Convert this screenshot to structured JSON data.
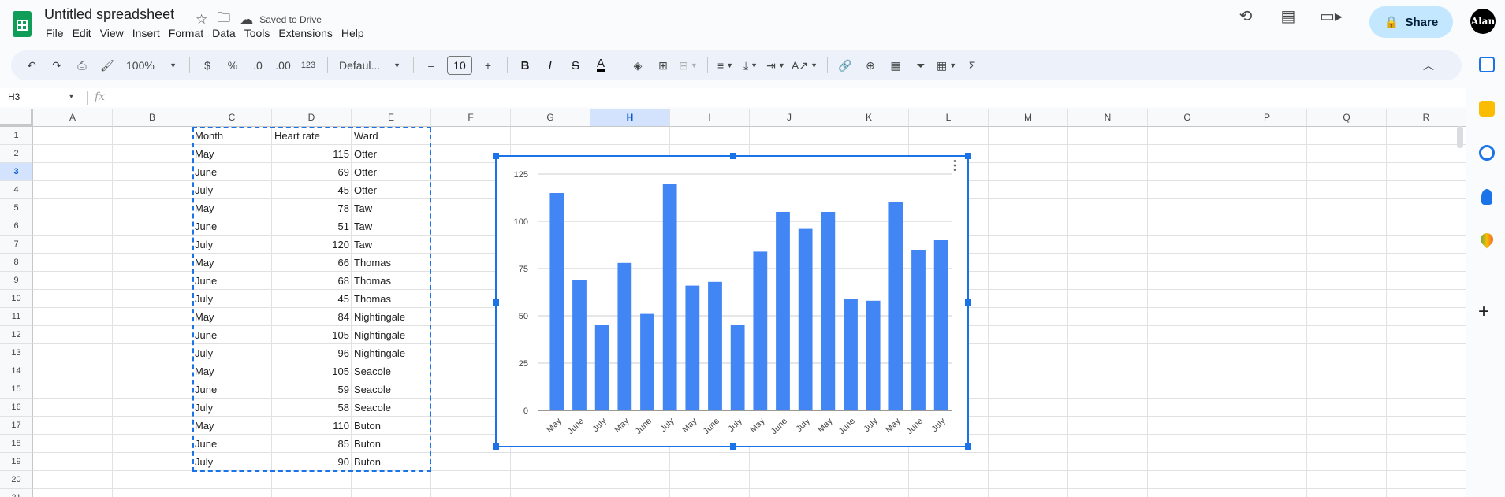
{
  "doc": {
    "title": "Untitled spreadsheet",
    "saved_status": "Saved to Drive"
  },
  "menu": [
    "File",
    "Edit",
    "View",
    "Insert",
    "Format",
    "Data",
    "Tools",
    "Extensions",
    "Help"
  ],
  "share_label": "Share",
  "avatar_label": "Alan",
  "toolbar": {
    "zoom": "100%",
    "currency": "$",
    "percent": "%",
    "dec_decrease": ".0",
    "dec_increase": ".00",
    "number_format": "123",
    "font": "Defaul...",
    "font_size": "10",
    "minus": "–",
    "plus": "+",
    "bold": "B",
    "italic": "I",
    "strike": "S",
    "text_color": "A",
    "sigma": "Σ"
  },
  "formula_bar": {
    "name_box": "H3",
    "fx": "fx",
    "content": ""
  },
  "columns": [
    "A",
    "B",
    "C",
    "D",
    "E",
    "F",
    "G",
    "H",
    "I",
    "J",
    "K",
    "L",
    "M",
    "N",
    "O",
    "P",
    "Q",
    "R"
  ],
  "selected_column": "H",
  "selected_row": 3,
  "rows": [
    "1",
    "2",
    "3",
    "4",
    "5",
    "6",
    "7",
    "8",
    "9",
    "10",
    "11",
    "12",
    "13",
    "14",
    "15",
    "16",
    "17",
    "18",
    "19",
    "20",
    "21"
  ],
  "sheet": {
    "headers": [
      "Month",
      "Heart rate",
      "Ward"
    ],
    "data": [
      [
        "May",
        "115",
        "Otter"
      ],
      [
        "June",
        "69",
        "Otter"
      ],
      [
        "July",
        "45",
        "Otter"
      ],
      [
        "May",
        "78",
        "Taw"
      ],
      [
        "June",
        "51",
        "Taw"
      ],
      [
        "July",
        "120",
        "Taw"
      ],
      [
        "May",
        "66",
        "Thomas"
      ],
      [
        "June",
        "68",
        "Thomas"
      ],
      [
        "July",
        "45",
        "Thomas"
      ],
      [
        "May",
        "84",
        "Nightingale"
      ],
      [
        "June",
        "105",
        "Nightingale"
      ],
      [
        "July",
        "96",
        "Nightingale"
      ],
      [
        "May",
        "105",
        "Seacole"
      ],
      [
        "June",
        "59",
        "Seacole"
      ],
      [
        "July",
        "58",
        "Seacole"
      ],
      [
        "May",
        "110",
        "Buton"
      ],
      [
        "June",
        "85",
        "Buton"
      ],
      [
        "July",
        "90",
        "Buton"
      ]
    ]
  },
  "chart_data": {
    "type": "bar",
    "categories": [
      "May",
      "June",
      "July",
      "May",
      "June",
      "July",
      "May",
      "June",
      "July",
      "May",
      "June",
      "July",
      "May",
      "June",
      "July",
      "May",
      "June",
      "July"
    ],
    "values": [
      115,
      69,
      45,
      78,
      51,
      120,
      66,
      68,
      45,
      84,
      105,
      96,
      105,
      59,
      58,
      110,
      85,
      90
    ],
    "title": "",
    "xlabel": "",
    "ylabel": "",
    "ylim": [
      0,
      125
    ],
    "yticks": [
      0,
      25,
      50,
      75,
      100,
      125
    ],
    "grid": true,
    "bar_color": "#4285f4"
  },
  "colors": {
    "accent": "#1a73e8",
    "share_bg": "#c2e7ff",
    "sheets_green": "#0f9d58"
  }
}
